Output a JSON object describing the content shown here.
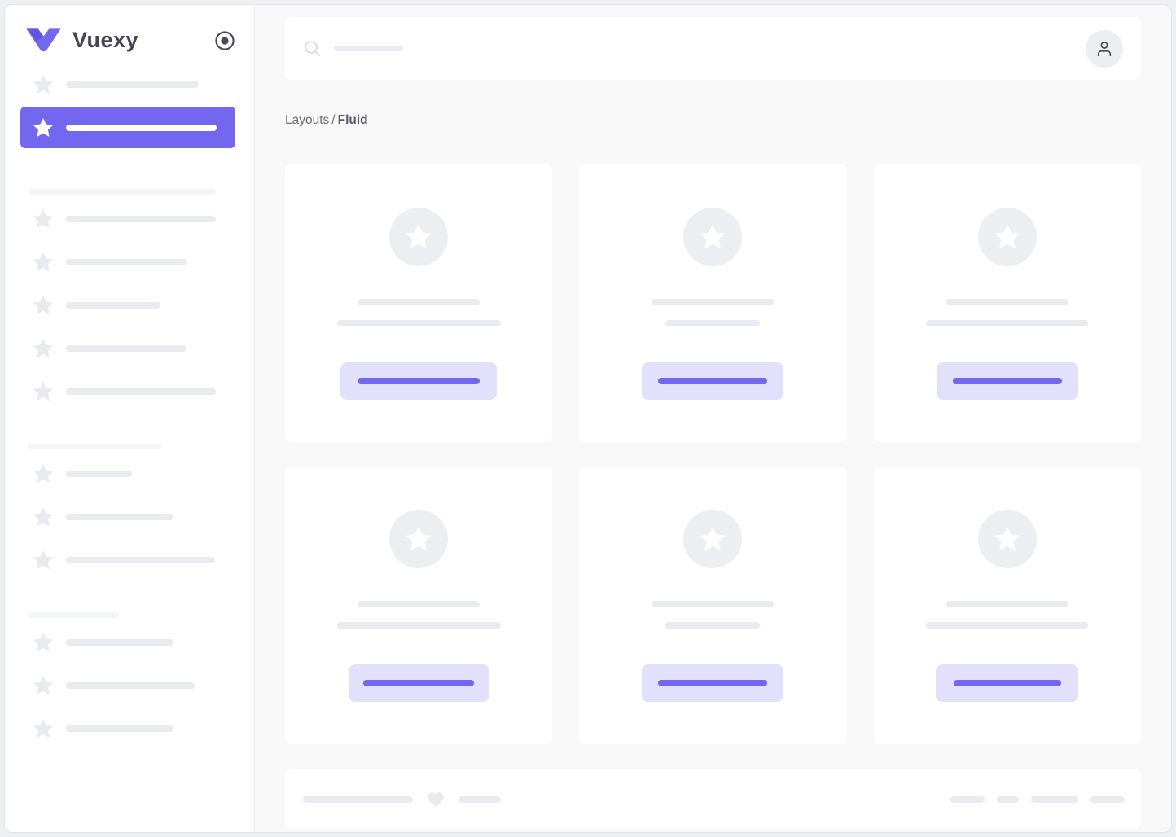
{
  "brand": {
    "name": "Vuexy",
    "logo_icon": "vuexy-v-logo",
    "toggle_icon": "radio-circle-icon",
    "primary_color": "#7367f0"
  },
  "header": {
    "search_icon": "magnifier-icon",
    "search_placeholder_width": 85,
    "avatar_icon": "person-icon"
  },
  "breadcrumb": {
    "parent": "Layouts",
    "separator": "/",
    "current": "Fluid"
  },
  "sidebar": {
    "top_items": [
      {
        "active": false,
        "bar": 163
      },
      {
        "active": true,
        "bar": 185
      }
    ],
    "sections": [
      {
        "header": 231,
        "items": [
          184,
          149,
          116,
          148,
          184
        ]
      },
      {
        "header": 164,
        "items": [
          81,
          132,
          183
        ]
      },
      {
        "header": 112,
        "items": [
          132,
          158,
          132
        ]
      }
    ]
  },
  "main": {
    "cards": [
      {
        "line1": 150,
        "line2": 201,
        "button": 192,
        "button_bar": 150
      },
      {
        "line1": 150,
        "line2": 116,
        "button": 174,
        "button_bar": 134
      },
      {
        "line1": 150,
        "line2": 199,
        "button": 174,
        "button_bar": 134
      },
      {
        "line1": 150,
        "line2": 201,
        "button": 173,
        "button_bar": 136
      },
      {
        "line1": 150,
        "line2": 116,
        "button": 174,
        "button_bar": 134
      },
      {
        "line1": 150,
        "line2": 199,
        "button": 175,
        "button_bar": 132
      }
    ]
  },
  "footer": {
    "left_bars": [
      135,
      52
    ],
    "heart_icon": "heart-icon",
    "right_bars": [
      42,
      27,
      58,
      42
    ]
  },
  "colors": {
    "primary": "#7367f0",
    "primary_light": "#e3e0fc",
    "skeleton": "#e9ebf0",
    "skeleton_light": "#f4f5f9",
    "page_bg": "#f8f8f8",
    "card_bg": "#ffffff",
    "text_dark": "#474459",
    "text_gray": "#6f6b7d"
  }
}
